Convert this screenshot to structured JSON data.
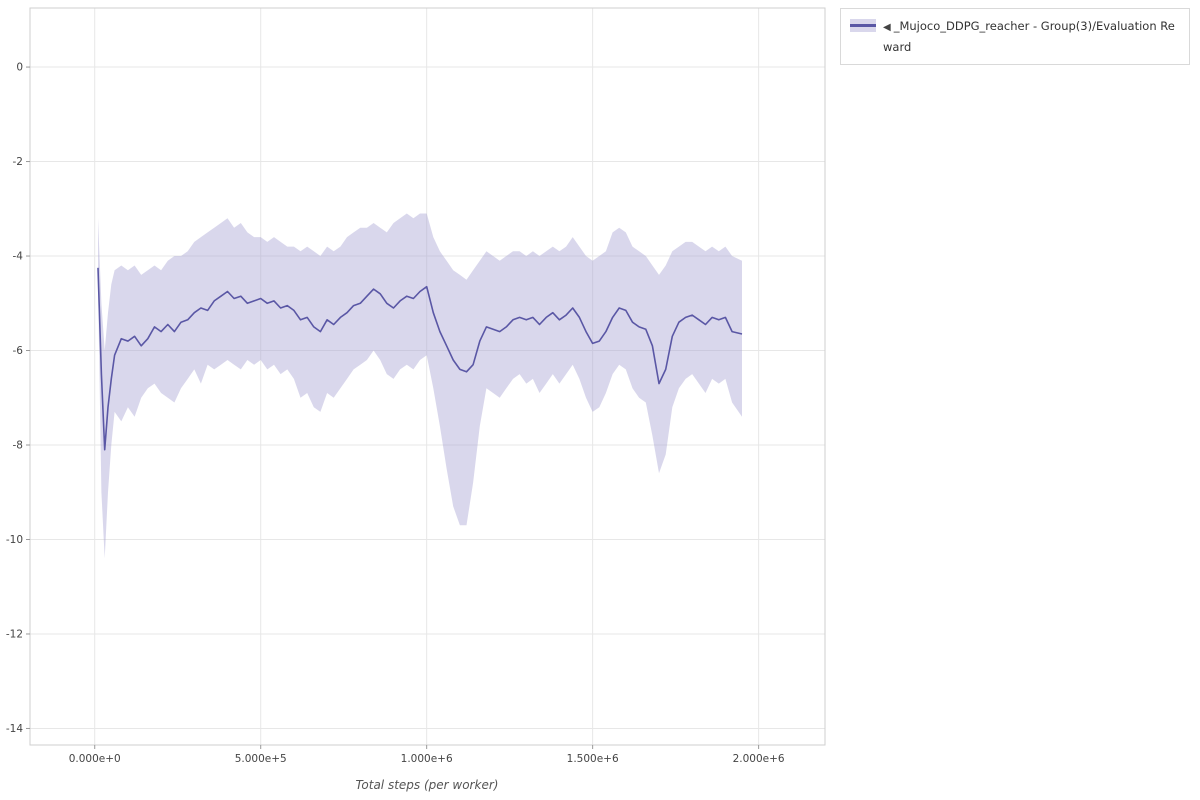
{
  "legend": {
    "collapse_icon": "◀",
    "label": "_Mujoco_DDPG_reacher - Group(3)/Evaluation Reward"
  },
  "chart_data": {
    "type": "line",
    "title": "",
    "xlabel": "Total steps (per worker)",
    "ylabel": "",
    "grid": true,
    "legend_position": "top-right-outside",
    "xlim": [
      -195000,
      2200000
    ],
    "ylim": [
      -14.35,
      1.25
    ],
    "xticks": [
      {
        "v": 0,
        "label": "0.000e+0"
      },
      {
        "v": 500000,
        "label": "5.000e+5"
      },
      {
        "v": 1000000,
        "label": "1.000e+6"
      },
      {
        "v": 1500000,
        "label": "1.500e+6"
      },
      {
        "v": 2000000,
        "label": "2.000e+6"
      }
    ],
    "yticks": [
      {
        "v": 0,
        "label": "0"
      },
      {
        "v": -2,
        "label": "-2"
      },
      {
        "v": -4,
        "label": "-4"
      },
      {
        "v": -6,
        "label": "-6"
      },
      {
        "v": -8,
        "label": "-8"
      },
      {
        "v": -10,
        "label": "-10"
      },
      {
        "v": -12,
        "label": "-12"
      },
      {
        "v": -14,
        "label": "-14"
      }
    ],
    "series": [
      {
        "name": "_Mujoco_DDPG_reacher - Group(3)/Evaluation Reward",
        "line_color": "#5a57a5",
        "band_color": "#a59fd2",
        "band_opacity": 0.42,
        "points_format": [
          "x_steps",
          "mean",
          "band_lower",
          "band_upper"
        ],
        "points": [
          [
            10000,
            -4.25,
            -4.6,
            -3.2
          ],
          [
            20000,
            -6.5,
            -9.0,
            -5.0
          ],
          [
            30000,
            -8.1,
            -10.4,
            -6.0
          ],
          [
            40000,
            -7.2,
            -9.0,
            -5.2
          ],
          [
            50000,
            -6.6,
            -8.0,
            -4.6
          ],
          [
            60000,
            -6.1,
            -7.3,
            -4.3
          ],
          [
            80000,
            -5.75,
            -7.5,
            -4.2
          ],
          [
            100000,
            -5.8,
            -7.2,
            -4.3
          ],
          [
            120000,
            -5.7,
            -7.4,
            -4.2
          ],
          [
            140000,
            -5.9,
            -7.0,
            -4.4
          ],
          [
            160000,
            -5.75,
            -6.8,
            -4.3
          ],
          [
            180000,
            -5.5,
            -6.7,
            -4.2
          ],
          [
            200000,
            -5.6,
            -6.9,
            -4.3
          ],
          [
            220000,
            -5.45,
            -7.0,
            -4.1
          ],
          [
            240000,
            -5.6,
            -7.1,
            -4.0
          ],
          [
            260000,
            -5.4,
            -6.8,
            -4.0
          ],
          [
            280000,
            -5.35,
            -6.6,
            -3.9
          ],
          [
            300000,
            -5.2,
            -6.4,
            -3.7
          ],
          [
            320000,
            -5.1,
            -6.7,
            -3.6
          ],
          [
            340000,
            -5.15,
            -6.3,
            -3.5
          ],
          [
            360000,
            -4.95,
            -6.4,
            -3.4
          ],
          [
            380000,
            -4.85,
            -6.3,
            -3.3
          ],
          [
            400000,
            -4.75,
            -6.2,
            -3.2
          ],
          [
            420000,
            -4.9,
            -6.3,
            -3.4
          ],
          [
            440000,
            -4.85,
            -6.4,
            -3.3
          ],
          [
            460000,
            -5.0,
            -6.2,
            -3.5
          ],
          [
            480000,
            -4.95,
            -6.3,
            -3.6
          ],
          [
            500000,
            -4.9,
            -6.2,
            -3.6
          ],
          [
            520000,
            -5.0,
            -6.4,
            -3.7
          ],
          [
            540000,
            -4.95,
            -6.3,
            -3.6
          ],
          [
            560000,
            -5.1,
            -6.5,
            -3.7
          ],
          [
            580000,
            -5.05,
            -6.4,
            -3.8
          ],
          [
            600000,
            -5.15,
            -6.6,
            -3.8
          ],
          [
            620000,
            -5.35,
            -7.0,
            -3.9
          ],
          [
            640000,
            -5.3,
            -6.9,
            -3.8
          ],
          [
            660000,
            -5.5,
            -7.2,
            -3.9
          ],
          [
            680000,
            -5.6,
            -7.3,
            -4.0
          ],
          [
            700000,
            -5.35,
            -6.9,
            -3.8
          ],
          [
            720000,
            -5.45,
            -7.0,
            -3.9
          ],
          [
            740000,
            -5.3,
            -6.8,
            -3.8
          ],
          [
            760000,
            -5.2,
            -6.6,
            -3.6
          ],
          [
            780000,
            -5.05,
            -6.4,
            -3.5
          ],
          [
            800000,
            -5.0,
            -6.3,
            -3.4
          ],
          [
            820000,
            -4.85,
            -6.2,
            -3.4
          ],
          [
            840000,
            -4.7,
            -6.0,
            -3.3
          ],
          [
            860000,
            -4.8,
            -6.2,
            -3.4
          ],
          [
            880000,
            -5.0,
            -6.5,
            -3.5
          ],
          [
            900000,
            -5.1,
            -6.6,
            -3.3
          ],
          [
            920000,
            -4.95,
            -6.4,
            -3.2
          ],
          [
            940000,
            -4.85,
            -6.3,
            -3.1
          ],
          [
            960000,
            -4.9,
            -6.4,
            -3.2
          ],
          [
            980000,
            -4.75,
            -6.2,
            -3.1
          ],
          [
            1000000,
            -4.65,
            -6.1,
            -3.1
          ],
          [
            1020000,
            -5.2,
            -6.8,
            -3.6
          ],
          [
            1040000,
            -5.6,
            -7.6,
            -3.9
          ],
          [
            1060000,
            -5.9,
            -8.5,
            -4.1
          ],
          [
            1080000,
            -6.2,
            -9.3,
            -4.3
          ],
          [
            1100000,
            -6.4,
            -9.7,
            -4.4
          ],
          [
            1120000,
            -6.45,
            -9.7,
            -4.5
          ],
          [
            1140000,
            -6.3,
            -8.8,
            -4.3
          ],
          [
            1160000,
            -5.8,
            -7.6,
            -4.1
          ],
          [
            1180000,
            -5.5,
            -6.8,
            -3.9
          ],
          [
            1200000,
            -5.55,
            -6.9,
            -4.0
          ],
          [
            1220000,
            -5.6,
            -7.0,
            -4.1
          ],
          [
            1240000,
            -5.5,
            -6.8,
            -4.0
          ],
          [
            1260000,
            -5.35,
            -6.6,
            -3.9
          ],
          [
            1280000,
            -5.3,
            -6.5,
            -3.9
          ],
          [
            1300000,
            -5.35,
            -6.7,
            -4.0
          ],
          [
            1320000,
            -5.3,
            -6.6,
            -3.9
          ],
          [
            1340000,
            -5.45,
            -6.9,
            -4.0
          ],
          [
            1360000,
            -5.3,
            -6.7,
            -3.9
          ],
          [
            1380000,
            -5.2,
            -6.5,
            -3.8
          ],
          [
            1400000,
            -5.35,
            -6.7,
            -3.9
          ],
          [
            1420000,
            -5.25,
            -6.5,
            -3.8
          ],
          [
            1440000,
            -5.1,
            -6.3,
            -3.6
          ],
          [
            1460000,
            -5.3,
            -6.6,
            -3.8
          ],
          [
            1480000,
            -5.6,
            -7.0,
            -4.0
          ],
          [
            1500000,
            -5.85,
            -7.3,
            -4.1
          ],
          [
            1520000,
            -5.8,
            -7.2,
            -4.0
          ],
          [
            1540000,
            -5.6,
            -6.9,
            -3.9
          ],
          [
            1560000,
            -5.3,
            -6.5,
            -3.5
          ],
          [
            1580000,
            -5.1,
            -6.3,
            -3.4
          ],
          [
            1600000,
            -5.15,
            -6.4,
            -3.5
          ],
          [
            1620000,
            -5.4,
            -6.8,
            -3.8
          ],
          [
            1640000,
            -5.5,
            -7.0,
            -3.9
          ],
          [
            1660000,
            -5.55,
            -7.1,
            -4.0
          ],
          [
            1680000,
            -5.9,
            -7.8,
            -4.2
          ],
          [
            1700000,
            -6.7,
            -8.6,
            -4.4
          ],
          [
            1720000,
            -6.4,
            -8.2,
            -4.2
          ],
          [
            1740000,
            -5.7,
            -7.2,
            -3.9
          ],
          [
            1760000,
            -5.4,
            -6.8,
            -3.8
          ],
          [
            1780000,
            -5.3,
            -6.6,
            -3.7
          ],
          [
            1800000,
            -5.25,
            -6.5,
            -3.7
          ],
          [
            1820000,
            -5.35,
            -6.7,
            -3.8
          ],
          [
            1840000,
            -5.45,
            -6.9,
            -3.9
          ],
          [
            1860000,
            -5.3,
            -6.6,
            -3.8
          ],
          [
            1880000,
            -5.35,
            -6.7,
            -3.9
          ],
          [
            1900000,
            -5.3,
            -6.6,
            -3.8
          ],
          [
            1920000,
            -5.6,
            -7.1,
            -4.0
          ],
          [
            1950000,
            -5.65,
            -7.4,
            -4.1
          ]
        ]
      }
    ]
  }
}
